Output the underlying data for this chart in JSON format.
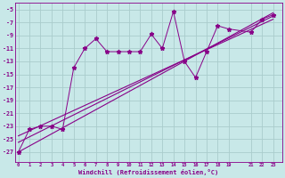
{
  "xlabel": "Windchill (Refroidissement éolien,°C)",
  "bg_color": "#c8e8e8",
  "grid_color": "#aacccc",
  "line_color": "#880088",
  "scatter_x": [
    0,
    1,
    2,
    3,
    4,
    5,
    6,
    7,
    8,
    9,
    10,
    11,
    12,
    13,
    14,
    15,
    16,
    17,
    18,
    19,
    21,
    22,
    23
  ],
  "scatter_y": [
    -27,
    -23.5,
    -23,
    -23,
    -23.5,
    -14,
    -11,
    -9.5,
    -11.5,
    -11.5,
    -11.5,
    -11.5,
    -8.8,
    -11,
    -5.3,
    -13,
    -15.5,
    -11.5,
    -7.5,
    -8,
    -8.5,
    -6.5,
    -5.8
  ],
  "reg_lines": [
    {
      "x0": 0,
      "y0": -27,
      "x1": 23,
      "y1": -5.5
    },
    {
      "x0": 0,
      "y0": -25.5,
      "x1": 23,
      "y1": -6.0
    },
    {
      "x0": 0,
      "y0": -24.5,
      "x1": 23,
      "y1": -6.5
    }
  ],
  "yticks": [
    -27,
    -25,
    -23,
    -21,
    -19,
    -17,
    -15,
    -13,
    -11,
    -9,
    -7,
    -5
  ],
  "xtick_vals": [
    0,
    1,
    2,
    3,
    4,
    5,
    6,
    7,
    8,
    9,
    10,
    11,
    12,
    13,
    14,
    15,
    16,
    17,
    18,
    19,
    21,
    22,
    23
  ],
  "xtick_labels": [
    "0",
    "1",
    "2",
    "3",
    "4",
    "5",
    "6",
    "7",
    "8",
    "9",
    "10",
    "11",
    "12",
    "13",
    "14",
    "15",
    "16",
    "17",
    "18",
    "19",
    "21",
    "22",
    "23"
  ],
  "ylim": [
    -28.5,
    -4.0
  ],
  "xlim": [
    -0.3,
    23.8
  ]
}
